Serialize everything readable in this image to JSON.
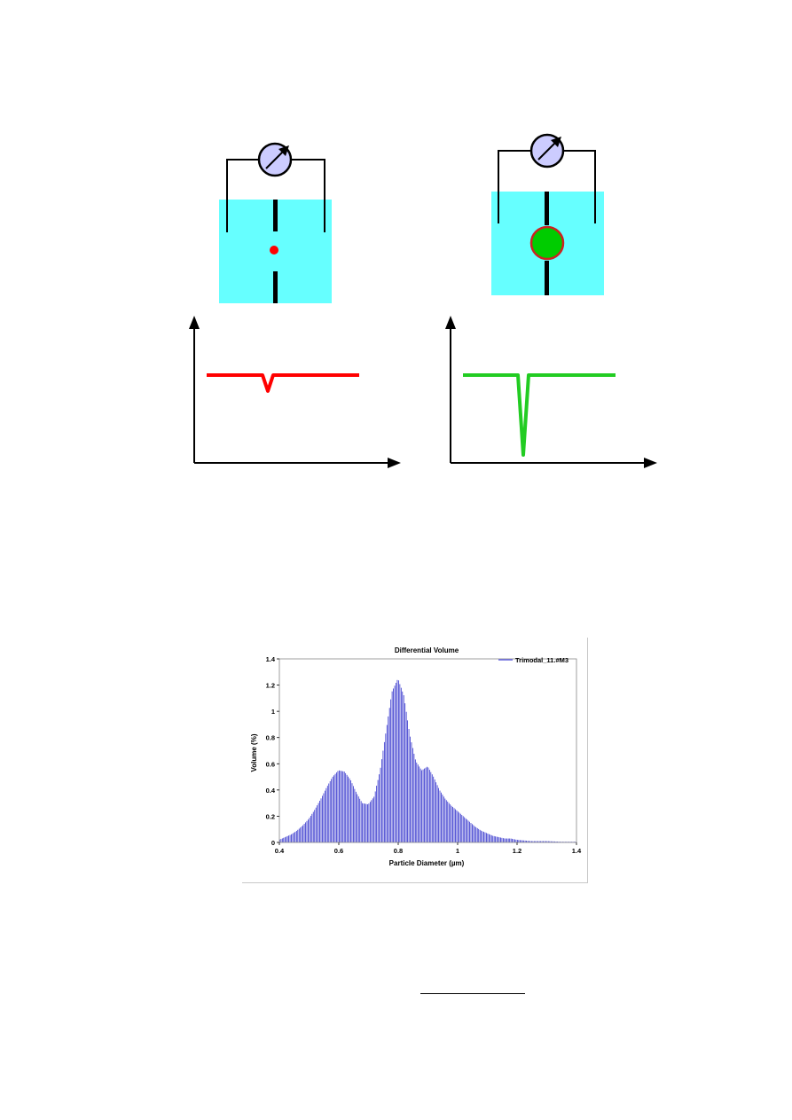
{
  "colors": {
    "electrolyte": "#66ffff",
    "small_particle": "#ff0000",
    "large_particle_fill": "#00cc00",
    "large_particle_border": "#cc2222",
    "small_pulse": "#ff0000",
    "large_pulse": "#22cc22",
    "meter_fill": "#ccccff",
    "bar_color": "#3333cc"
  },
  "icons": {
    "meter": "ammeter-dial-icon"
  },
  "pulses": {
    "small_relative_depth": 0.2,
    "large_relative_depth": 1.0
  },
  "chart_data": {
    "type": "bar",
    "title": "Differential Volume",
    "xlabel": "Particle Diameter (µm)",
    "ylabel": "Volume (%)",
    "xlim": [
      0.4,
      1.4
    ],
    "ylim": [
      0,
      1.4
    ],
    "xticks": [
      "0.4",
      "0.6",
      "0.8",
      "1",
      "1.2",
      "1.4"
    ],
    "yticks": [
      "0",
      "0.2",
      "0.4",
      "0.6",
      "0.8",
      "1",
      "1.2",
      "1.4"
    ],
    "legend": {
      "position": "top-right",
      "entries": [
        "Trimodal_11.#M3"
      ]
    },
    "series": [
      {
        "name": "Trimodal_11.#M3",
        "x": [
          0.4,
          0.42,
          0.44,
          0.46,
          0.48,
          0.5,
          0.52,
          0.54,
          0.56,
          0.58,
          0.6,
          0.62,
          0.64,
          0.66,
          0.68,
          0.7,
          0.72,
          0.74,
          0.76,
          0.78,
          0.8,
          0.82,
          0.84,
          0.86,
          0.88,
          0.9,
          0.92,
          0.94,
          0.96,
          0.98,
          1.0,
          1.02,
          1.04,
          1.06,
          1.08,
          1.1,
          1.12,
          1.14,
          1.16,
          1.18,
          1.2,
          1.25,
          1.3,
          1.35,
          1.4
        ],
        "values": [
          0.02,
          0.04,
          0.06,
          0.09,
          0.13,
          0.18,
          0.25,
          0.33,
          0.42,
          0.5,
          0.55,
          0.54,
          0.48,
          0.38,
          0.3,
          0.29,
          0.35,
          0.55,
          0.85,
          1.15,
          1.25,
          1.12,
          0.82,
          0.62,
          0.55,
          0.58,
          0.5,
          0.4,
          0.33,
          0.28,
          0.24,
          0.2,
          0.16,
          0.12,
          0.09,
          0.07,
          0.05,
          0.04,
          0.03,
          0.03,
          0.02,
          0.01,
          0.01,
          0.005,
          0.005
        ]
      }
    ]
  }
}
